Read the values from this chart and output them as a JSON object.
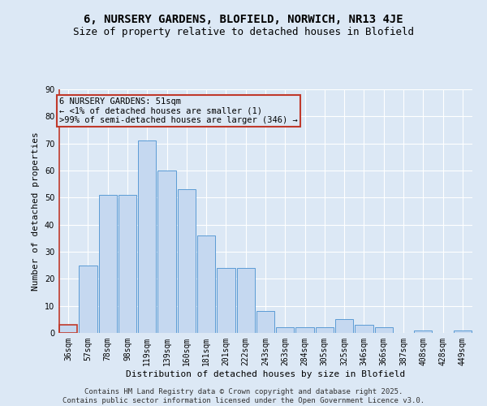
{
  "title": "6, NURSERY GARDENS, BLOFIELD, NORWICH, NR13 4JE",
  "subtitle": "Size of property relative to detached houses in Blofield",
  "xlabel": "Distribution of detached houses by size in Blofield",
  "ylabel": "Number of detached properties",
  "categories": [
    "36sqm",
    "57sqm",
    "78sqm",
    "98sqm",
    "119sqm",
    "139sqm",
    "160sqm",
    "181sqm",
    "201sqm",
    "222sqm",
    "243sqm",
    "263sqm",
    "284sqm",
    "305sqm",
    "325sqm",
    "346sqm",
    "366sqm",
    "387sqm",
    "408sqm",
    "428sqm",
    "449sqm"
  ],
  "values": [
    3,
    25,
    51,
    51,
    71,
    60,
    53,
    36,
    24,
    24,
    8,
    2,
    2,
    2,
    5,
    3,
    2,
    0,
    1,
    0,
    1
  ],
  "bar_color": "#c5d8f0",
  "bar_edge_color": "#5b9bd5",
  "highlight_bar_index": 0,
  "highlight_bar_edge_color": "#c0392b",
  "annotation_text": "6 NURSERY GARDENS: 51sqm\n← <1% of detached houses are smaller (1)\n>99% of semi-detached houses are larger (346) →",
  "annotation_box_edge_color": "#c0392b",
  "ylim": [
    0,
    90
  ],
  "yticks": [
    0,
    10,
    20,
    30,
    40,
    50,
    60,
    70,
    80,
    90
  ],
  "background_color": "#dce8f5",
  "grid_color": "#ffffff",
  "footer_text": "Contains HM Land Registry data © Crown copyright and database right 2025.\nContains public sector information licensed under the Open Government Licence v3.0.",
  "title_fontsize": 10,
  "subtitle_fontsize": 9,
  "axis_label_fontsize": 8,
  "tick_fontsize": 7,
  "annotation_fontsize": 7.5,
  "footer_fontsize": 6.5
}
